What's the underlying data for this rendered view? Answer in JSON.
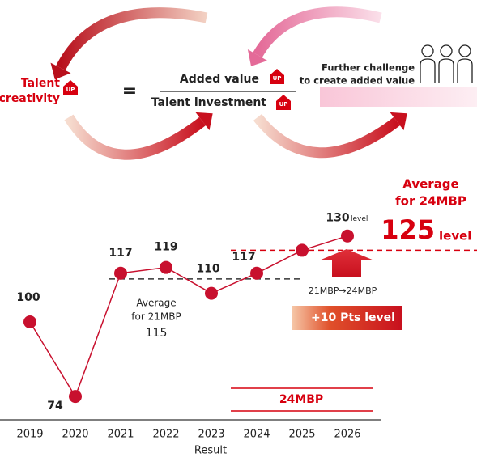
{
  "diagram": {
    "left_label": [
      "Talent",
      "creativity"
    ],
    "equals": "=",
    "numerator": "Added value",
    "denominator": "Talent investment",
    "badge": "UP",
    "right_label": [
      "Further challenge",
      "to create added value"
    ]
  },
  "chart_data": {
    "type": "line",
    "categories": [
      "2019",
      "2020",
      "2021",
      "2022",
      "2023",
      "2024",
      "2025",
      "2026"
    ],
    "values": [
      100,
      74,
      117,
      119,
      110,
      117,
      125,
      130
    ],
    "value_labels": [
      "100",
      "74",
      "117",
      "119",
      "110",
      "117",
      null,
      "130"
    ],
    "color": "#c8102e",
    "ylim": [
      65,
      135
    ],
    "x_label": "Result",
    "reference_lines": [
      {
        "name": [
          "Average",
          "for 21MBP"
        ],
        "value": 115,
        "color": "#333333"
      },
      {
        "name": [
          "Average",
          "for 24MBP"
        ],
        "value": 125,
        "unit": "level",
        "color": "#d7000f"
      }
    ],
    "annotations": {
      "last_point_unit": "level",
      "transition": "21MBP→24MBP",
      "increase": "+10 Pts level",
      "period": "24MBP"
    }
  }
}
